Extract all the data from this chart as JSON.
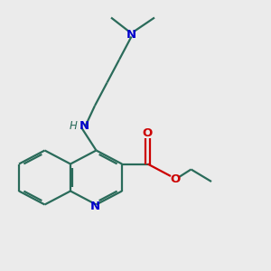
{
  "bg_color": "#ebebeb",
  "bond_color": "#2a6b5a",
  "N_color": "#0000cc",
  "O_color": "#cc0000",
  "lw": 1.6,
  "figsize": [
    3.0,
    3.0
  ],
  "dpi": 100,
  "xlim": [
    0,
    10
  ],
  "ylim": [
    0,
    10
  ]
}
